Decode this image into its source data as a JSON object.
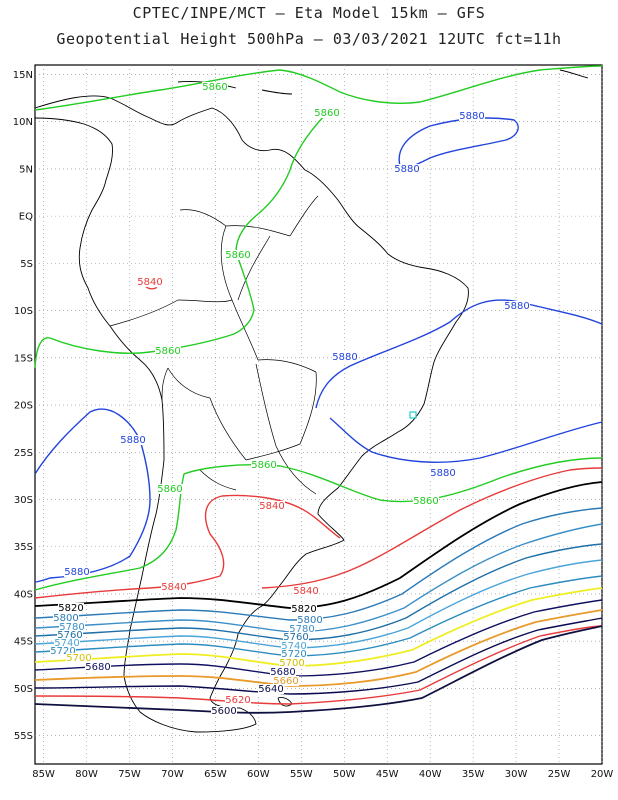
{
  "header": {
    "line1": "CPTEC/INPE/MCT –  Eta Model 15km – GFS",
    "line2": "Geopotential Height 500hPa – 03/03/2021 12UTC fct=11h"
  },
  "axes": {
    "lat_labels": [
      "15N",
      "10N",
      "5N",
      "EQ",
      "5S",
      "10S",
      "15S",
      "20S",
      "25S",
      "30S",
      "35S",
      "40S",
      "45S",
      "50S",
      "55S"
    ],
    "lon_labels": [
      "85W",
      "80W",
      "75W",
      "70W",
      "65W",
      "60W",
      "55W",
      "50W",
      "45W",
      "40W",
      "35W",
      "30W",
      "25W",
      "20W"
    ],
    "lat_range": [
      -58,
      16
    ],
    "lon_range": [
      -86,
      -20
    ],
    "grid": true,
    "grid_style": "dotted"
  },
  "colors": {
    "5860": "#22cc22",
    "5880": "#2244dd",
    "5840": "#e83a3a",
    "5820": "#000000",
    "5800": "#2a7ab8",
    "5780": "#3b8fc8",
    "5760": "#1e6fa8",
    "5740": "#4aa4d8",
    "5720": "#2c8cc0",
    "5700": "#eeee22",
    "5680": "#101060",
    "5660": "#e89a2a",
    "5640": "#0a0a50",
    "5620": "#e83a3a",
    "5600": "#101040",
    "landmark": "#22cccc"
  },
  "contour_labels": [
    {
      "text": "5860",
      "color": "#22cc22"
    },
    {
      "text": "5860",
      "color": "#22cc22"
    },
    {
      "text": "5860",
      "color": "#22cc22"
    },
    {
      "text": "5860",
      "color": "#22cc22"
    },
    {
      "text": "5860",
      "color": "#22cc22"
    },
    {
      "text": "5860",
      "color": "#22cc22"
    },
    {
      "text": "5860",
      "color": "#22cc22"
    },
    {
      "text": "5880",
      "color": "#2244dd"
    },
    {
      "text": "5880",
      "color": "#2244dd"
    },
    {
      "text": "5880",
      "color": "#2244dd"
    },
    {
      "text": "5880",
      "color": "#2244dd"
    },
    {
      "text": "5880",
      "color": "#2244dd"
    },
    {
      "text": "5880",
      "color": "#2244dd"
    },
    {
      "text": "5880",
      "color": "#2244dd"
    },
    {
      "text": "5840",
      "color": "#e83a3a"
    },
    {
      "text": "5840",
      "color": "#e83a3a"
    },
    {
      "text": "5840",
      "color": "#e83a3a"
    },
    {
      "text": "5840",
      "color": "#e83a3a"
    },
    {
      "text": "5820",
      "color": "#000000"
    },
    {
      "text": "5820",
      "color": "#000000"
    },
    {
      "text": "5800",
      "color": "#2a7ab8"
    },
    {
      "text": "5800",
      "color": "#2a7ab8"
    },
    {
      "text": "5780",
      "color": "#3b8fc8"
    },
    {
      "text": "5780",
      "color": "#3b8fc8"
    },
    {
      "text": "5760",
      "color": "#1e6fa8"
    },
    {
      "text": "5760",
      "color": "#1e6fa8"
    },
    {
      "text": "5740",
      "color": "#4aa4d8"
    },
    {
      "text": "5740",
      "color": "#4aa4d8"
    },
    {
      "text": "5720",
      "color": "#2c8cc0"
    },
    {
      "text": "5720",
      "color": "#2c8cc0"
    },
    {
      "text": "5700",
      "color": "#d0c000"
    },
    {
      "text": "5700",
      "color": "#d0c000"
    },
    {
      "text": "5680",
      "color": "#101060"
    },
    {
      "text": "5680",
      "color": "#101060"
    },
    {
      "text": "5660",
      "color": "#e89a2a"
    },
    {
      "text": "5640",
      "color": "#0a0a50"
    },
    {
      "text": "5620",
      "color": "#e83a3a"
    },
    {
      "text": "5600",
      "color": "#101040"
    }
  ]
}
